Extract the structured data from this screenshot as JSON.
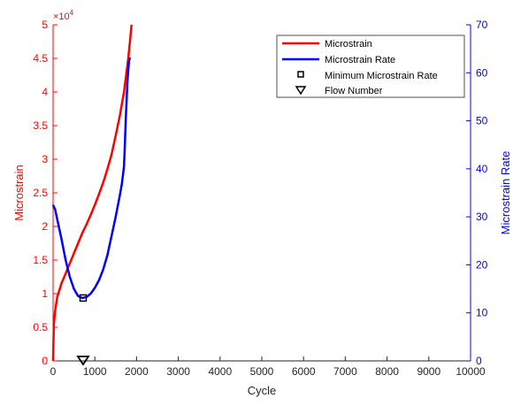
{
  "chart_data": {
    "type": "line",
    "xlabel": "Cycle",
    "ylabel_left": "Microstrain",
    "ylabel_right": "Microstrain Rate",
    "left_axis_multiplier": "×10",
    "left_axis_exponent": "4",
    "xlim": [
      0,
      10000
    ],
    "ylim_left": [
      0,
      5
    ],
    "ylim_right": [
      0,
      70
    ],
    "x_ticks": [
      0,
      1000,
      2000,
      3000,
      4000,
      5000,
      6000,
      7000,
      8000,
      9000,
      10000
    ],
    "x_tick_labels": [
      "0",
      "1000",
      "2000",
      "3000",
      "4000",
      "5000",
      "6000",
      "7000",
      "8000",
      "9000",
      "10000"
    ],
    "y_left_ticks": [
      0,
      0.5,
      1,
      1.5,
      2,
      2.5,
      3,
      3.5,
      4,
      4.5,
      5
    ],
    "y_left_tick_labels": [
      "0",
      "0.5",
      "1",
      "1.5",
      "2",
      "2.5",
      "3",
      "3.5",
      "4",
      "4.5",
      "5"
    ],
    "y_right_ticks": [
      0,
      10,
      20,
      30,
      40,
      50,
      60,
      70
    ],
    "y_right_tick_labels": [
      "0",
      "10",
      "20",
      "30",
      "40",
      "50",
      "60",
      "70"
    ],
    "grid": false,
    "legend_position": "top-right",
    "colors": {
      "left_axis": "#ff0000",
      "right_axis": "#0000ff",
      "markers": "#000000"
    },
    "series": [
      {
        "name": "Microstrain",
        "axis": "left",
        "color": "#ff0000",
        "x": [
          0,
          20,
          50,
          100,
          150,
          200,
          300,
          400,
          500,
          600,
          700,
          800,
          900,
          1000,
          1100,
          1200,
          1300,
          1400,
          1500,
          1600,
          1700,
          1750,
          1800,
          1850,
          1880
        ],
        "y": [
          0.0,
          0.55,
          0.75,
          0.95,
          1.05,
          1.15,
          1.3,
          1.45,
          1.6,
          1.75,
          1.9,
          2.03,
          2.17,
          2.32,
          2.48,
          2.65,
          2.85,
          3.07,
          3.35,
          3.65,
          4.0,
          4.25,
          4.5,
          4.8,
          5.0
        ]
      },
      {
        "name": "Microstrain Rate",
        "axis": "right",
        "color": "#0000ff",
        "x": [
          0,
          50,
          100,
          200,
          300,
          400,
          500,
          600,
          700,
          800,
          900,
          1000,
          1100,
          1200,
          1300,
          1400,
          1500,
          1600,
          1650,
          1700,
          1720,
          1740,
          1760,
          1780,
          1800,
          1820,
          1840,
          1860
        ],
        "y": [
          32.5,
          31.5,
          29.5,
          25.5,
          21.0,
          17.5,
          15.0,
          13.5,
          13.1,
          13.3,
          14.0,
          15.2,
          16.8,
          19.0,
          22.0,
          26.0,
          30.0,
          34.5,
          37.0,
          40.5,
          45.0,
          50.0,
          54.0,
          58.0,
          60.5,
          62.5,
          63.0,
          63.0
        ]
      },
      {
        "name": "Minimum Microstrain Rate",
        "axis": "right",
        "marker": "square",
        "color": "#000000",
        "x": [
          720
        ],
        "y": [
          13.1
        ]
      },
      {
        "name": "Flow Number",
        "axis": "left",
        "marker": "triangle-down",
        "color": "#000000",
        "x": [
          720
        ],
        "y": [
          0
        ]
      }
    ]
  }
}
